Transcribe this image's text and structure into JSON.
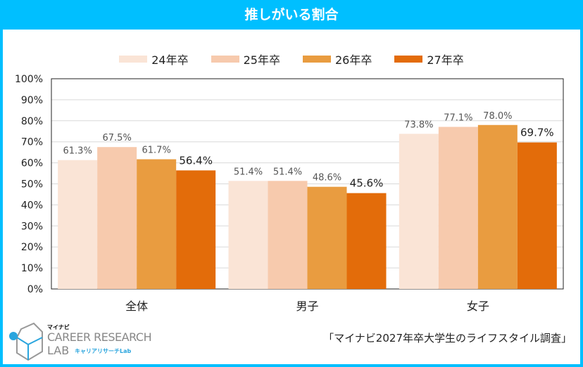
{
  "title": "推しがいる割合",
  "colors": [
    "#fae4d6",
    "#f7caad",
    "#e99c40",
    "#e36c0a"
  ],
  "chart_data": {
    "type": "bar",
    "categories": [
      "全体",
      "男子",
      "女子"
    ],
    "series": [
      {
        "name": "24年卒",
        "values": [
          61.3,
          51.4,
          73.8
        ]
      },
      {
        "name": "25年卒",
        "values": [
          67.5,
          51.4,
          77.1
        ]
      },
      {
        "name": "26年卒",
        "values": [
          61.7,
          48.6,
          78.0
        ]
      },
      {
        "name": "27年卒",
        "values": [
          56.4,
          45.6,
          69.7
        ]
      }
    ],
    "ylim": [
      0,
      100
    ],
    "yticks": [
      "0%",
      "10%",
      "20%",
      "30%",
      "40%",
      "50%",
      "60%",
      "70%",
      "80%",
      "90%",
      "100%"
    ],
    "grid": true,
    "legend": "top"
  },
  "logo": {
    "brand": "マイナビ",
    "line1": "CAREER RESEARCH",
    "line2": "LAB",
    "sub": "キャリアリサーチLab"
  },
  "source": "「マイナビ2027年卒大学生のライフスタイル調査」"
}
